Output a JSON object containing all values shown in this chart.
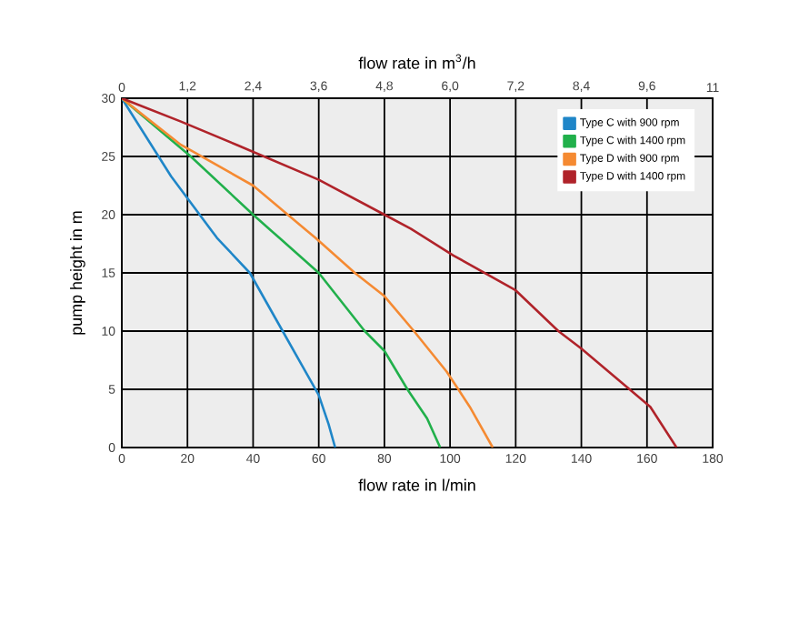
{
  "chart_data": {
    "type": "line",
    "xlabel": "flow rate in l/min",
    "x2label": "flow rate in m$^{3}$/h",
    "ylabel": "pump height in m",
    "xlim": [
      0,
      180
    ],
    "xticks": [
      0,
      20,
      40,
      60,
      80,
      100,
      120,
      140,
      160,
      180
    ],
    "x2lim": [
      0,
      10.8
    ],
    "x2ticks": [
      {
        "value": 0,
        "label": "0"
      },
      {
        "value": 1.2,
        "label": "1,2"
      },
      {
        "value": 2.4,
        "label": "2,4"
      },
      {
        "value": 3.6,
        "label": "3,6"
      },
      {
        "value": 4.8,
        "label": "4,8"
      },
      {
        "value": 6.0,
        "label": "6,0"
      },
      {
        "value": 7.2,
        "label": "7,2"
      },
      {
        "value": 8.4,
        "label": "8,4"
      },
      {
        "value": 9.6,
        "label": "9,6"
      },
      {
        "value": 10.8,
        "label": "11"
      }
    ],
    "ylim": [
      0,
      30
    ],
    "yticks": [
      0,
      5,
      10,
      15,
      20,
      25,
      30
    ],
    "grid": true,
    "legend": "top right",
    "marker": "none",
    "line_style": "solid",
    "series": [
      {
        "name": "Type C with 900 rpm",
        "color": "#1f86c8",
        "x": [
          0,
          15,
          29,
          39,
          44,
          49,
          55,
          60,
          63,
          65
        ],
        "values": [
          30,
          23.3,
          18,
          15,
          12.5,
          10,
          7,
          4.5,
          2,
          0
        ]
      },
      {
        "name": "Type C with 1400 rpm",
        "color": "#21b04b",
        "x": [
          0,
          21,
          40,
          48,
          60,
          74,
          80,
          87,
          93,
          97
        ],
        "values": [
          30,
          25,
          20,
          18,
          15,
          10,
          8.3,
          5,
          2.5,
          0
        ]
      },
      {
        "name": "Type D with 900 rpm",
        "color": "#f58a32",
        "x": [
          0,
          18,
          40,
          59,
          71,
          80,
          89,
          99,
          106,
          113
        ],
        "values": [
          30,
          26,
          22.5,
          18,
          15,
          13,
          10,
          6.5,
          3.5,
          0
        ]
      },
      {
        "name": "Type D with 1400 rpm",
        "color": "#b0232a",
        "x": [
          0,
          18,
          35,
          60,
          80,
          88,
          101,
          120,
          133,
          140,
          161,
          169
        ],
        "values": [
          30,
          28,
          26,
          23,
          20,
          18.8,
          16.5,
          13.5,
          10,
          8.5,
          3.5,
          0
        ]
      }
    ]
  }
}
